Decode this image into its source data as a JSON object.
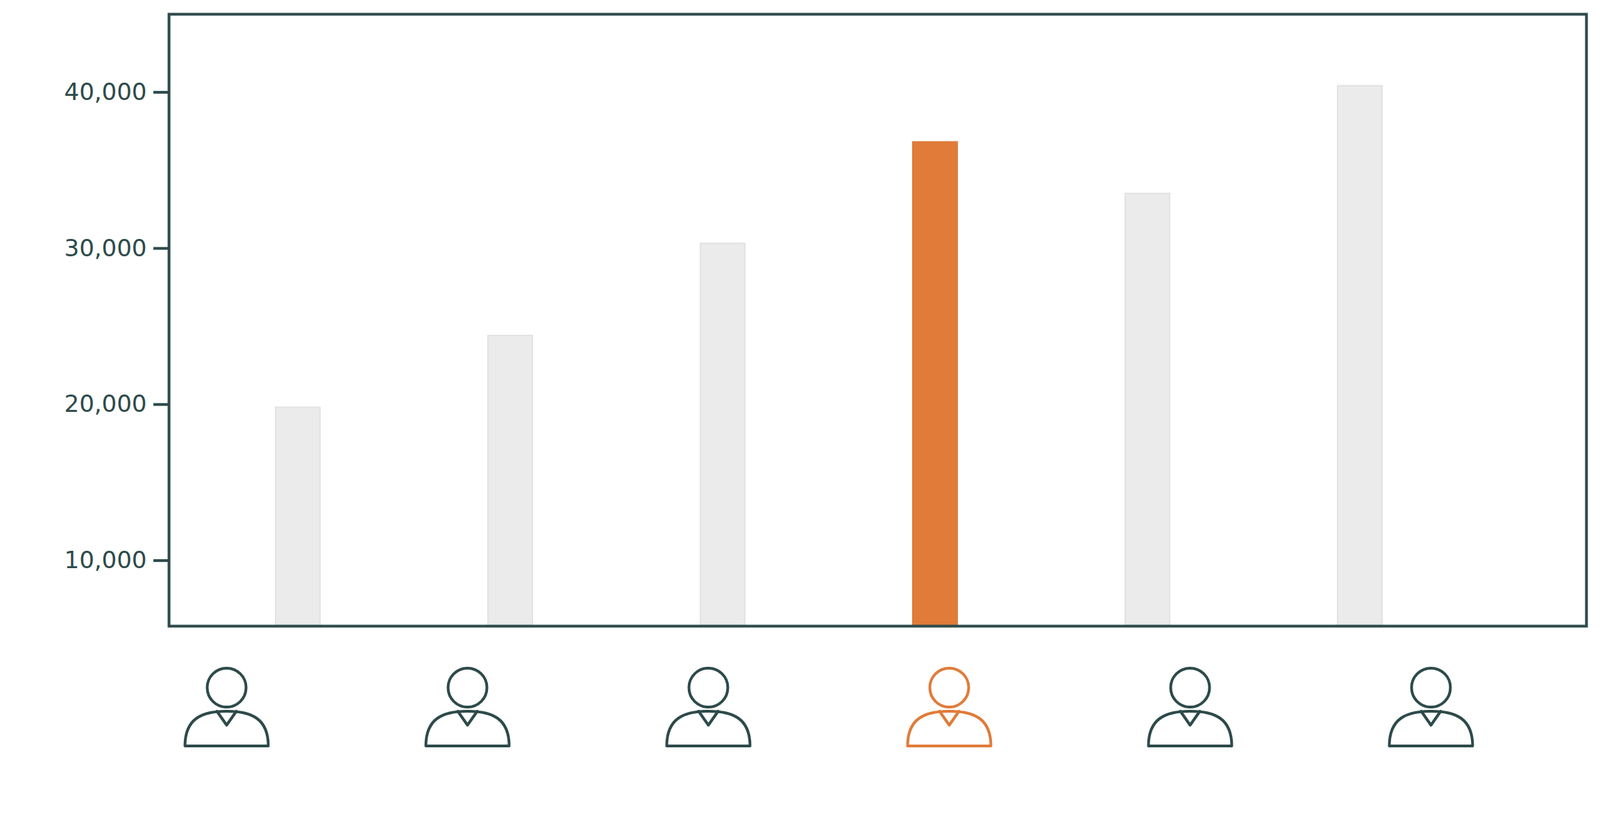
{
  "chart_data": {
    "type": "bar",
    "categories": [
      null,
      null,
      null,
      null,
      null,
      null
    ],
    "values": [
      19800,
      24400,
      30300,
      36800,
      33500,
      40400
    ],
    "colors": [
      "#ebebeb",
      "#ebebeb",
      "#ebebeb",
      "#e07b39",
      "#ebebeb",
      "#ebebeb"
    ],
    "ylim": [
      5800,
      45000
    ],
    "yticks": [
      {
        "value": 10000,
        "label": "10,000"
      },
      {
        "value": 20000,
        "label": "20,000"
      },
      {
        "value": 30000,
        "label": "30,000"
      },
      {
        "value": 40000,
        "label": "40,000"
      }
    ],
    "grid": false,
    "tick_labels": "y"
  }
}
